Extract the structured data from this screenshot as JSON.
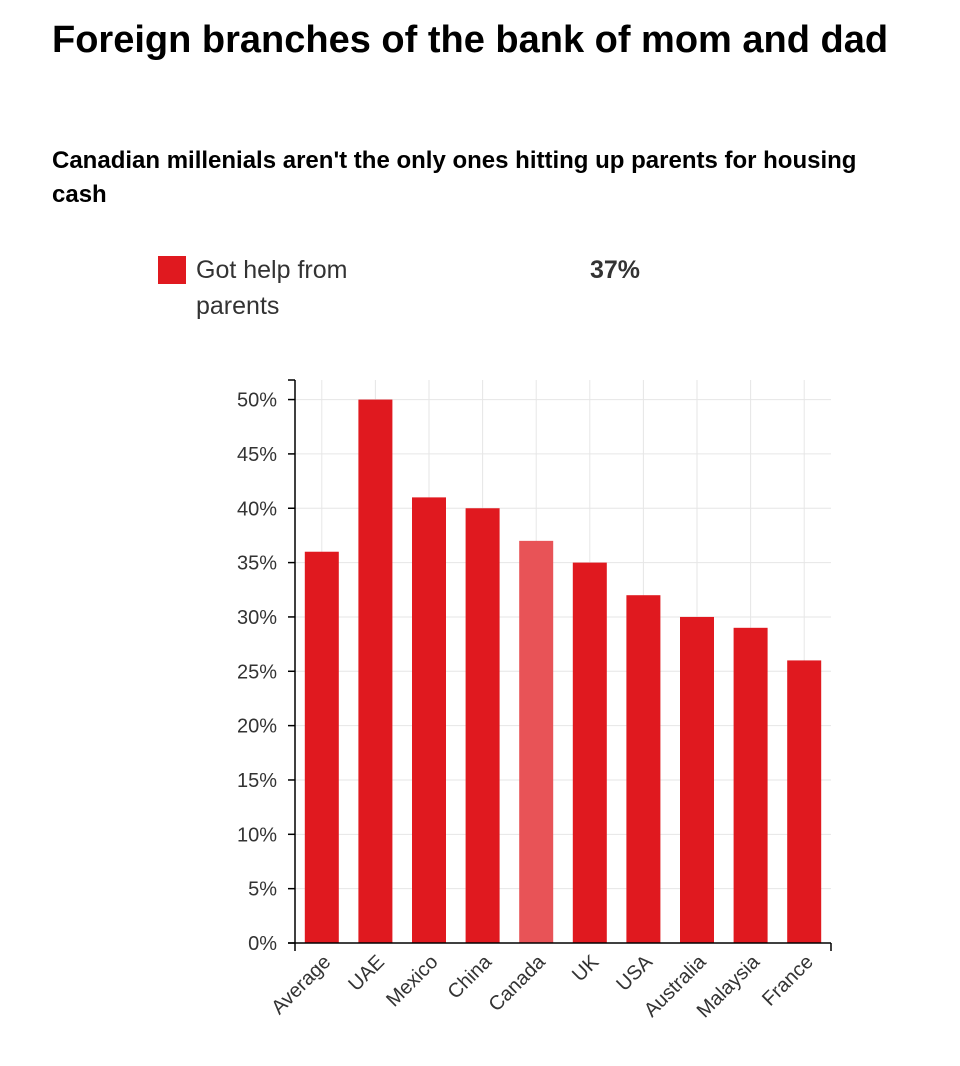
{
  "title": "Foreign branches of the bank of mom and dad",
  "subtitle": "Canadian millenials aren't the only ones hitting up parents for housing cash",
  "legend": {
    "label": "Got help from parents",
    "value": "37%",
    "color": "#e0191f"
  },
  "colors": {
    "bar": "#e0191f",
    "highlight": "#e85357",
    "grid": "#e6e6e6",
    "axis": "#000000"
  },
  "chart_data": {
    "type": "bar",
    "categories": [
      "Average",
      "UAE",
      "Mexico",
      "China",
      "Canada",
      "UK",
      "USA",
      "Australia",
      "Malaysia",
      "France"
    ],
    "series": [
      {
        "name": "Got help from parents",
        "values": [
          36,
          50,
          41,
          40,
          37,
          35,
          32,
          30,
          29,
          26
        ]
      }
    ],
    "highlighted_category": "Canada",
    "ylim": [
      0,
      51.8
    ],
    "yticks": [
      0,
      5,
      10,
      15,
      20,
      25,
      30,
      35,
      40,
      45,
      50
    ],
    "ytick_labels": [
      "0%",
      "5%",
      "10%",
      "15%",
      "20%",
      "25%",
      "30%",
      "35%",
      "40%",
      "45%",
      "50%"
    ],
    "grid": true,
    "legend_position": "top"
  }
}
